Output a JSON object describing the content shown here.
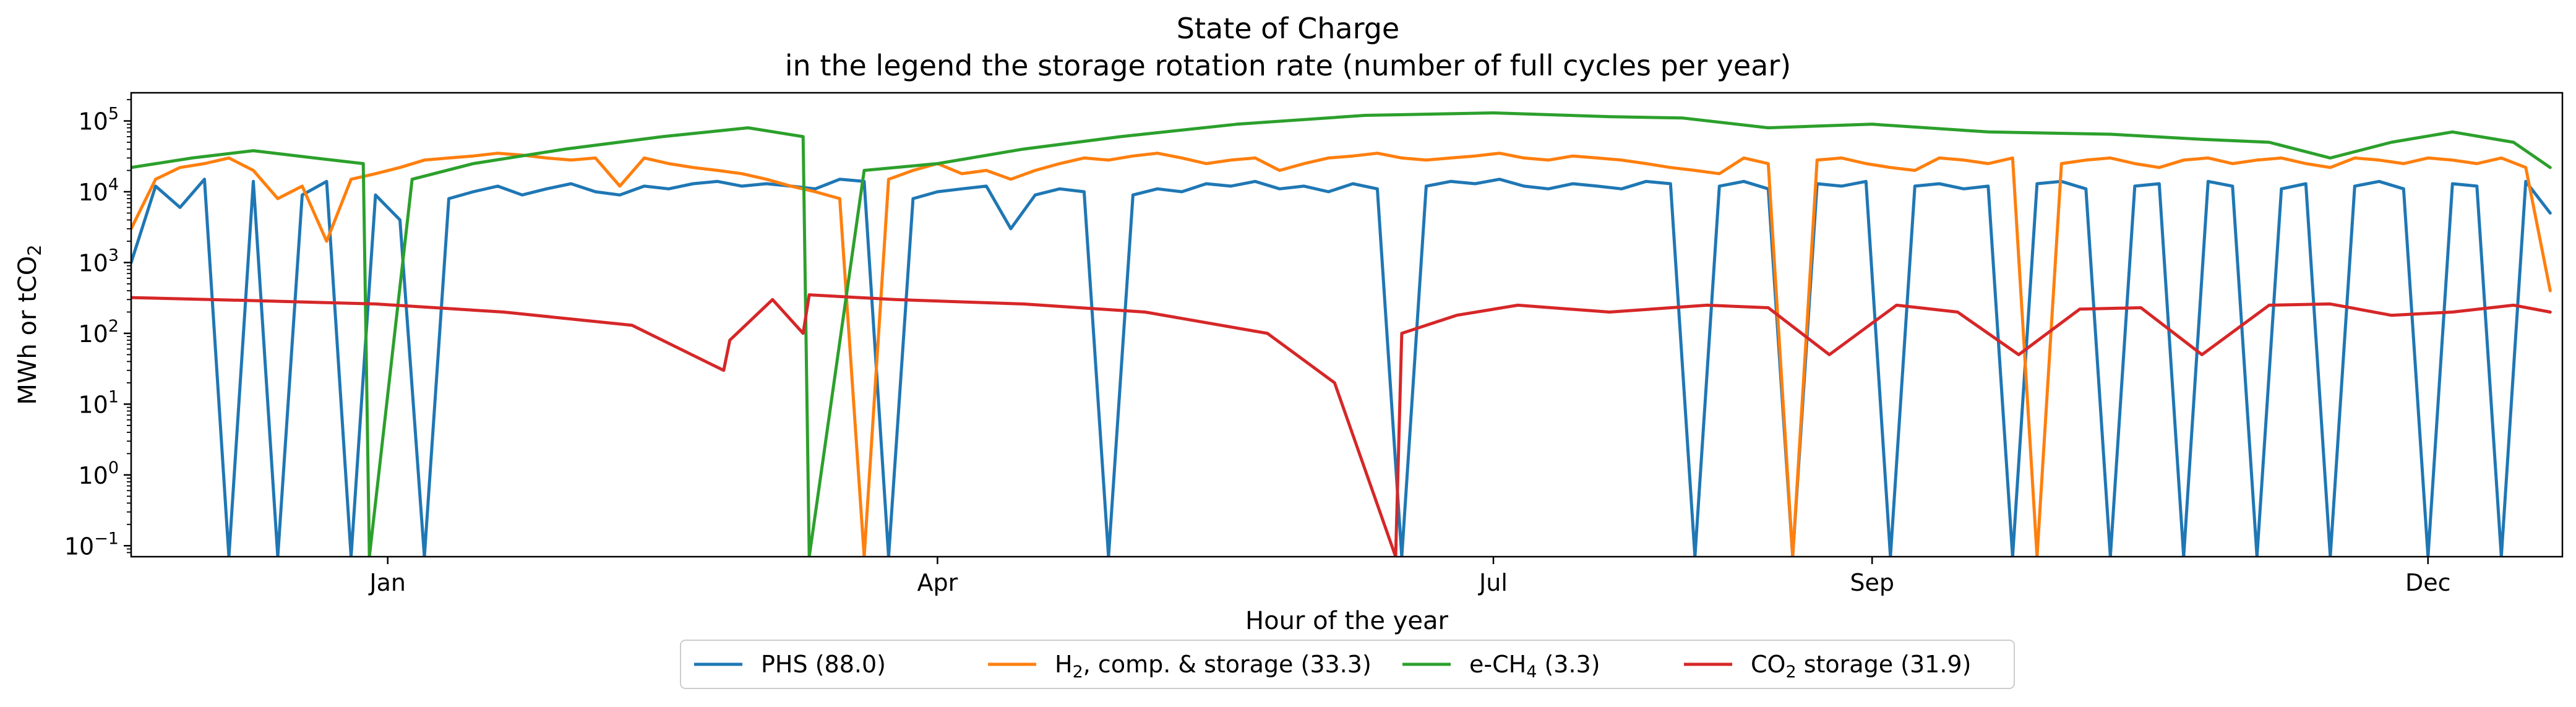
{
  "chart_data": {
    "type": "line",
    "title": "State of Charge",
    "subtitle": "in the legend the storage rotation rate (number of full cycles per year)",
    "xlabel": "Hour of the year",
    "ylabel": {
      "main": "MWh or tCO",
      "sub": "2"
    },
    "yscale": "log",
    "ylim": [
      0.07,
      250000
    ],
    "grid": false,
    "legend_position": "bottom-center",
    "x_ticks": [
      "Jan",
      "Apr",
      "Jul",
      "Sep",
      "Dec"
    ],
    "y_ticks": [
      {
        "value": 0.1,
        "base": "10",
        "exp": "−1"
      },
      {
        "value": 1,
        "base": "10",
        "exp": "0"
      },
      {
        "value": 10,
        "base": "10",
        "exp": "1"
      },
      {
        "value": 100,
        "base": "10",
        "exp": "2"
      },
      {
        "value": 1000,
        "base": "10",
        "exp": "3"
      },
      {
        "value": 10000,
        "base": "10",
        "exp": "4"
      },
      {
        "value": 100000,
        "base": "10",
        "exp": "5"
      }
    ],
    "series": [
      {
        "name": "PHS (88.0)",
        "label_parts": [
          "PHS (88.0)",
          "",
          ""
        ],
        "color": "#1f77b4",
        "x": [
          "Nov 20",
          "Nov 24",
          "Nov 28",
          "Dec 2",
          "Dec 6",
          "Dec 10",
          "Dec 14",
          "Dec 18",
          "Dec 22",
          "Dec 26",
          "Dec 30",
          "Jan 3",
          "Jan 7",
          "Jan 11",
          "Jan 15",
          "Jan 19",
          "Jan 23",
          "Jan 27",
          "Jan 31",
          "Feb 4",
          "Feb 8",
          "Feb 12",
          "Feb 16",
          "Feb 20",
          "Feb 24",
          "Feb 28",
          "Mar 4",
          "Mar 8",
          "Mar 12",
          "Mar 16",
          "Mar 20",
          "Mar 24",
          "Mar 28",
          "Apr 1",
          "Apr 5",
          "Apr 9",
          "Apr 13",
          "Apr 17",
          "Apr 21",
          "Apr 25",
          "Apr 29",
          "May 3",
          "May 7",
          "May 11",
          "May 15",
          "May 19",
          "May 23",
          "May 27",
          "May 31",
          "Jun 4",
          "Jun 8",
          "Jun 12",
          "Jun 16",
          "Jun 20",
          "Jun 24",
          "Jun 28",
          "Jul 2",
          "Jul 6",
          "Jul 10",
          "Jul 14",
          "Jul 18",
          "Jul 22",
          "Jul 26",
          "Jul 30",
          "Aug 3",
          "Aug 7",
          "Aug 11",
          "Aug 15",
          "Aug 19",
          "Aug 23",
          "Aug 27",
          "Aug 31",
          "Sep 4",
          "Sep 8",
          "Sep 12",
          "Sep 16",
          "Sep 20",
          "Sep 24",
          "Sep 28",
          "Oct 2",
          "Oct 6",
          "Oct 10",
          "Oct 14",
          "Oct 18",
          "Oct 22",
          "Oct 26",
          "Oct 30",
          "Nov 3",
          "Nov 7",
          "Nov 11",
          "Nov 15",
          "Nov 19",
          "Nov 23",
          "Nov 27",
          "Dec 1",
          "Dec 5",
          "Dec 9",
          "Dec 13",
          "Dec 17",
          "Dec 21"
        ],
        "values": [
          1000,
          12000,
          6000,
          15000,
          0.07,
          14000,
          0.07,
          9000,
          14000,
          0.07,
          9000,
          4000,
          0.07,
          8000,
          10000,
          12000,
          9000,
          11000,
          13000,
          10000,
          9000,
          12000,
          11000,
          13000,
          14000,
          12000,
          13000,
          12000,
          11000,
          15000,
          14000,
          0.07,
          8000,
          10000,
          11000,
          12000,
          3000,
          9000,
          11000,
          10000,
          0.07,
          9000,
          11000,
          10000,
          13000,
          12000,
          14000,
          11000,
          12000,
          10000,
          13000,
          11000,
          0.07,
          12000,
          14000,
          13000,
          15000,
          12000,
          11000,
          13000,
          12000,
          11000,
          14000,
          13000,
          0.07,
          12000,
          14000,
          11000,
          0.07,
          13000,
          12000,
          14000,
          0.07,
          12000,
          13000,
          11000,
          12000,
          0.07,
          13000,
          14000,
          11000,
          0.07,
          12000,
          13000,
          0.07,
          14000,
          12000,
          0.07,
          11000,
          13000,
          0.07,
          12000,
          14000,
          11000,
          0.07,
          13000,
          12000,
          0.07,
          14000,
          5000
        ]
      },
      {
        "name": "H2, comp. & storage (33.3)",
        "label_parts": [
          "H",
          "2",
          ", comp. & storage (33.3)"
        ],
        "color": "#ff7f0e",
        "x": [
          "Nov 20",
          "Nov 24",
          "Nov 28",
          "Dec 2",
          "Dec 6",
          "Dec 10",
          "Dec 14",
          "Dec 18",
          "Dec 22",
          "Dec 26",
          "Dec 30",
          "Jan 3",
          "Jan 7",
          "Jan 11",
          "Jan 15",
          "Jan 19",
          "Jan 23",
          "Jan 27",
          "Jan 31",
          "Feb 4",
          "Feb 8",
          "Feb 12",
          "Feb 16",
          "Feb 20",
          "Feb 24",
          "Feb 28",
          "Mar 4",
          "Mar 8",
          "Mar 12",
          "Mar 16",
          "Mar 20",
          "Mar 24",
          "Mar 28",
          "Apr 1",
          "Apr 5",
          "Apr 9",
          "Apr 13",
          "Apr 17",
          "Apr 21",
          "Apr 25",
          "Apr 29",
          "May 3",
          "May 7",
          "May 11",
          "May 15",
          "May 19",
          "May 23",
          "May 27",
          "May 31",
          "Jun 4",
          "Jun 8",
          "Jun 12",
          "Jun 16",
          "Jun 20",
          "Jun 24",
          "Jun 28",
          "Jul 2",
          "Jul 6",
          "Jul 10",
          "Jul 14",
          "Jul 18",
          "Jul 22",
          "Jul 26",
          "Jul 30",
          "Aug 3",
          "Aug 7",
          "Aug 11",
          "Aug 15",
          "Aug 19",
          "Aug 23",
          "Aug 27",
          "Aug 31",
          "Sep 4",
          "Sep 8",
          "Sep 12",
          "Sep 16",
          "Sep 20",
          "Sep 24",
          "Sep 28",
          "Oct 2",
          "Oct 6",
          "Oct 10",
          "Oct 14",
          "Oct 18",
          "Oct 22",
          "Oct 26",
          "Oct 30",
          "Nov 3",
          "Nov 7",
          "Nov 11",
          "Nov 15",
          "Nov 19",
          "Nov 23",
          "Nov 27",
          "Dec 1",
          "Dec 5",
          "Dec 9",
          "Dec 13",
          "Dec 17",
          "Dec 21"
        ],
        "values": [
          3000,
          15000,
          22000,
          25000,
          30000,
          20000,
          8000,
          12000,
          2000,
          15000,
          18000,
          22000,
          28000,
          30000,
          32000,
          35000,
          33000,
          30000,
          28000,
          30000,
          12000,
          30000,
          25000,
          22000,
          20000,
          18000,
          15000,
          12000,
          10000,
          8000,
          0.07,
          15000,
          20000,
          25000,
          18000,
          20000,
          15000,
          20000,
          25000,
          30000,
          28000,
          32000,
          35000,
          30000,
          25000,
          28000,
          30000,
          20000,
          25000,
          30000,
          32000,
          35000,
          30000,
          28000,
          30000,
          32000,
          35000,
          30000,
          28000,
          32000,
          30000,
          28000,
          25000,
          22000,
          20000,
          18000,
          30000,
          25000,
          0.07,
          28000,
          30000,
          25000,
          22000,
          20000,
          30000,
          28000,
          25000,
          30000,
          0.07,
          25000,
          28000,
          30000,
          25000,
          22000,
          28000,
          30000,
          25000,
          28000,
          30000,
          25000,
          22000,
          30000,
          28000,
          25000,
          30000,
          28000,
          25000,
          30000,
          22000,
          400
        ]
      },
      {
        "name": "e-CH4 (3.3)",
        "label_parts": [
          "e-CH",
          "4",
          " (3.3)"
        ],
        "color": "#2ca02c",
        "x": [
          "Nov 20",
          "Nov 30",
          "Dec 10",
          "Dec 20",
          "Dec 28",
          "Dec 29",
          "Jan 5",
          "Jan 15",
          "Jan 30",
          "Feb 15",
          "Mar 1",
          "Mar 10",
          "Mar 11",
          "Mar 20",
          "Apr 1",
          "Apr 15",
          "May 1",
          "May 20",
          "Jun 10",
          "Jul 1",
          "Jul 20",
          "Aug 1",
          "Aug 15",
          "Sep 1",
          "Sep 20",
          "Oct 10",
          "Oct 25",
          "Nov 5",
          "Nov 15",
          "Nov 25",
          "Dec 5",
          "Dec 15",
          "Dec 21"
        ],
        "values": [
          22000,
          30000,
          38000,
          30000,
          25000,
          0.07,
          15000,
          25000,
          40000,
          60000,
          80000,
          60000,
          0.07,
          20000,
          25000,
          40000,
          60000,
          90000,
          120000,
          130000,
          115000,
          110000,
          80000,
          90000,
          70000,
          65000,
          55000,
          50000,
          30000,
          50000,
          70000,
          50000,
          22000
        ]
      },
      {
        "name": "CO2 storage (31.9)",
        "label_parts": [
          "CO",
          "2",
          " storage (31.9)"
        ],
        "color": "#d62728",
        "x": [
          "Nov 20",
          "Dec 10",
          "Dec 30",
          "Jan 20",
          "Feb 10",
          "Feb 25",
          "Feb 26",
          "Mar 5",
          "Mar 10",
          "Mar 11",
          "Mar 25",
          "Apr 15",
          "May 5",
          "May 25",
          "Jun 5",
          "Jun 15",
          "Jun 16",
          "Jun 25",
          "Jul 5",
          "Jul 20",
          "Aug 5",
          "Aug 15",
          "Aug 25",
          "Sep 5",
          "Sep 15",
          "Sep 25",
          "Oct 5",
          "Oct 15",
          "Oct 25",
          "Nov 5",
          "Nov 15",
          "Nov 25",
          "Dec 5",
          "Dec 15",
          "Dec 21"
        ],
        "values": [
          320,
          290,
          260,
          200,
          130,
          30,
          80,
          300,
          100,
          350,
          300,
          260,
          200,
          100,
          20,
          0.07,
          100,
          180,
          250,
          200,
          250,
          230,
          50,
          250,
          200,
          50,
          220,
          230,
          50,
          250,
          260,
          180,
          200,
          250,
          200
        ]
      }
    ]
  }
}
